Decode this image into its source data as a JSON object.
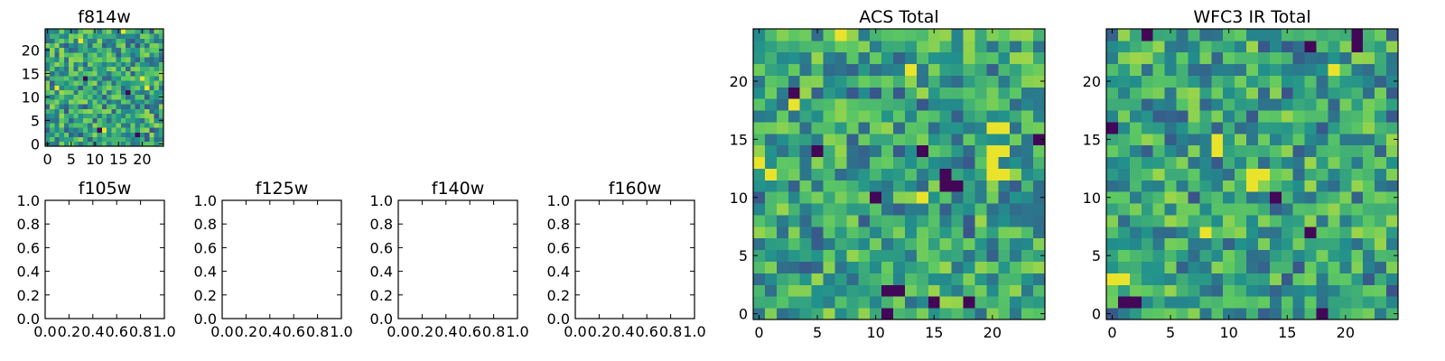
{
  "chart_data": [
    {
      "type": "heatmap",
      "title": "f814w",
      "grid_size": 25,
      "xlim": [
        -0.5,
        24.5
      ],
      "ylim": [
        -0.5,
        24.5
      ],
      "xticks": [
        0,
        5,
        10,
        15,
        20
      ],
      "yticks": [
        0,
        5,
        10,
        15,
        20
      ],
      "colormap": "viridis",
      "seed": 814,
      "bright_spots": [
        [
          20,
          14
        ],
        [
          21,
          12
        ],
        [
          16,
          24
        ],
        [
          7,
          22
        ],
        [
          2,
          12
        ],
        [
          12,
          3
        ]
      ],
      "dark_spots": [
        [
          17,
          11
        ],
        [
          11,
          3
        ],
        [
          19,
          2
        ],
        [
          8,
          14
        ]
      ]
    },
    {
      "type": "empty",
      "title": "f105w",
      "xlim": [
        0,
        1
      ],
      "ylim": [
        0,
        1
      ],
      "xticks": [
        "0.0",
        "0.2",
        "0.4",
        "0.6",
        "0.8",
        "1.0"
      ],
      "yticks": [
        "0.0",
        "0.2",
        "0.4",
        "0.6",
        "0.8",
        "1.0"
      ]
    },
    {
      "type": "empty",
      "title": "f125w",
      "xlim": [
        0,
        1
      ],
      "ylim": [
        0,
        1
      ],
      "xticks": [
        "0.0",
        "0.2",
        "0.4",
        "0.6",
        "0.8",
        "1.0"
      ],
      "yticks": [
        "0.0",
        "0.2",
        "0.4",
        "0.6",
        "0.8",
        "1.0"
      ]
    },
    {
      "type": "empty",
      "title": "f140w",
      "xlim": [
        0,
        1
      ],
      "ylim": [
        0,
        1
      ],
      "xticks": [
        "0.0",
        "0.2",
        "0.4",
        "0.6",
        "0.8",
        "1.0"
      ],
      "yticks": [
        "0.0",
        "0.2",
        "0.4",
        "0.6",
        "0.8",
        "1.0"
      ]
    },
    {
      "type": "empty",
      "title": "f160w",
      "xlim": [
        0,
        1
      ],
      "ylim": [
        0,
        1
      ],
      "xticks": [
        "0.0",
        "0.2",
        "0.4",
        "0.6",
        "0.8",
        "1.0"
      ],
      "yticks": [
        "0.0",
        "0.2",
        "0.4",
        "0.6",
        "0.8",
        "1.0"
      ]
    },
    {
      "type": "heatmap",
      "title": "ACS Total",
      "grid_size": 25,
      "xlim": [
        -0.5,
        24.5
      ],
      "ylim": [
        -0.5,
        24.5
      ],
      "xticks": [
        0,
        5,
        10,
        15,
        20
      ],
      "yticks": [
        0,
        5,
        10,
        15,
        20
      ],
      "colormap": "viridis",
      "seed": 1234,
      "bright_spots": [
        [
          20,
          16
        ],
        [
          21,
          16
        ],
        [
          20,
          14
        ],
        [
          21,
          14
        ],
        [
          20,
          13
        ],
        [
          21,
          12
        ],
        [
          20,
          12
        ],
        [
          0,
          13
        ],
        [
          3,
          18
        ],
        [
          13,
          21
        ],
        [
          7,
          24
        ],
        [
          14,
          10
        ],
        [
          1,
          12
        ]
      ],
      "dark_spots": [
        [
          16,
          11
        ],
        [
          17,
          11
        ],
        [
          16,
          12
        ],
        [
          11,
          2
        ],
        [
          12,
          2
        ],
        [
          10,
          10
        ],
        [
          5,
          14
        ],
        [
          24,
          15
        ],
        [
          3,
          19
        ],
        [
          18,
          1
        ],
        [
          15,
          1
        ],
        [
          11,
          0
        ],
        [
          14,
          14
        ]
      ]
    },
    {
      "type": "heatmap",
      "title": "WFC3 IR Total",
      "grid_size": 25,
      "xlim": [
        -0.5,
        24.5
      ],
      "ylim": [
        -0.5,
        24.5
      ],
      "xticks": [
        0,
        5,
        10,
        15,
        20
      ],
      "yticks": [
        0,
        5,
        10,
        15,
        20
      ],
      "colormap": "viridis",
      "seed": 777,
      "bright_spots": [
        [
          9,
          15
        ],
        [
          9,
          14
        ],
        [
          12,
          12
        ],
        [
          13,
          12
        ],
        [
          12,
          11
        ],
        [
          0,
          3
        ],
        [
          1,
          3
        ],
        [
          19,
          21
        ],
        [
          8,
          7
        ]
      ],
      "dark_spots": [
        [
          21,
          23
        ],
        [
          21,
          24
        ],
        [
          17,
          23
        ],
        [
          3,
          24
        ],
        [
          0,
          16
        ],
        [
          14,
          10
        ],
        [
          1,
          1
        ],
        [
          2,
          1
        ],
        [
          18,
          0
        ],
        [
          17,
          7
        ]
      ]
    }
  ]
}
